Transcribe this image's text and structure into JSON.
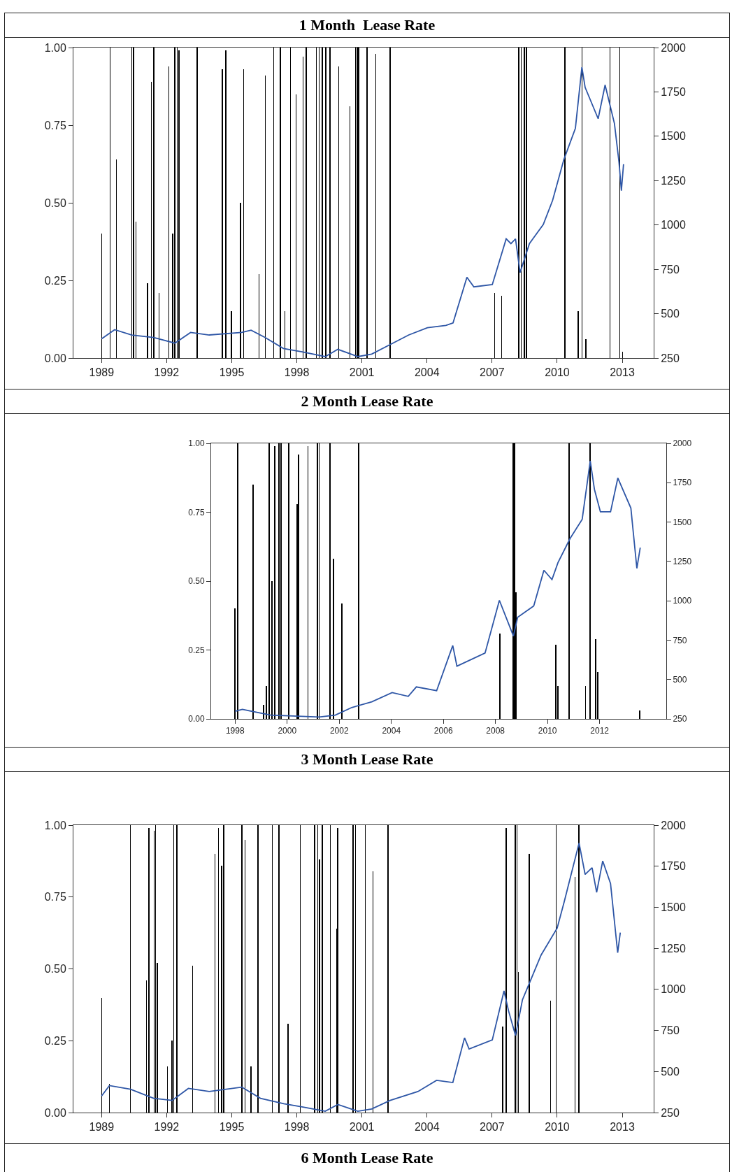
{
  "chart_data": [
    {
      "type": "bar",
      "title": "1 Month  Lease Rate",
      "xlim": [
        1987.7,
        2014.45
      ],
      "xticks": [
        1989,
        1992,
        1995,
        1998,
        2001,
        2004,
        2007,
        2010,
        2013
      ],
      "ylim": [
        0,
        1
      ],
      "yticks": [
        {
          "value": 0,
          "label": "0.00"
        },
        {
          "value": 0.25,
          "label": "0.25"
        },
        {
          "value": 0.5,
          "label": "0.50"
        },
        {
          "value": 0.75,
          "label": "0.75"
        },
        {
          "value": 1,
          "label": "1.00"
        }
      ],
      "y2lim": [
        250,
        2000
      ],
      "y2ticks": [
        250,
        500,
        750,
        1000,
        1250,
        1500,
        1750,
        2000
      ],
      "series": [
        {
          "type": "bar",
          "color": "#000000",
          "x": [
            1989.0,
            1989.39,
            1989.68,
            1990.39,
            1990.48,
            1990.58,
            1991.12,
            1991.29,
            1991.4,
            1991.65,
            1992.1,
            1992.27,
            1992.38,
            1992.49,
            1992.57,
            1993.41,
            1994.56,
            1994.73,
            1994.99,
            1995.4,
            1995.55,
            1996.25,
            1996.55,
            1996.94,
            1997.24,
            1997.45,
            1997.71,
            1997.96,
            1998.28,
            1998.43,
            1998.9,
            1999.03,
            1999.18,
            1999.33,
            1999.52,
            1999.93,
            2000.44,
            2000.7,
            2000.78,
            2000.85,
            2001.24,
            2001.64,
            2002.3,
            2007.12,
            2007.44,
            2008.23,
            2008.34,
            2008.49,
            2008.59,
            2010.35,
            2010.97,
            2011.14,
            2011.33,
            2012.44,
            2012.89,
            2013.02
          ],
          "values": [
            0.4,
            1,
            0.64,
            1,
            1,
            0.44,
            0.24,
            0.89,
            1,
            0.21,
            0.94,
            0.4,
            1,
            1,
            0.99,
            1,
            0.93,
            0.99,
            0.15,
            0.5,
            0.93,
            0.27,
            0.91,
            1,
            1,
            0.15,
            1,
            0.85,
            0.97,
            1,
            1,
            1,
            1,
            1,
            1,
            0.94,
            0.81,
            1,
            1,
            1,
            1,
            0.98,
            1,
            0.21,
            0.2,
            1,
            1,
            1,
            1,
            1,
            0.15,
            1,
            0.06,
            1,
            1,
            0.02
          ]
        },
        {
          "type": "line",
          "axis": "y2",
          "color": "#2e56a6",
          "x": [
            1989.0,
            1989.6,
            1990.39,
            1991.4,
            1992.38,
            1993.1,
            1993.96,
            1995.46,
            1995.89,
            1996.53,
            1997.38,
            1998.24,
            1999.31,
            1999.89,
            2000.81,
            2001.45,
            2002.3,
            2003.16,
            2004.02,
            2004.87,
            2005.2,
            2005.84,
            2006.16,
            2007.01,
            2007.65,
            2007.87,
            2008.08,
            2008.29,
            2008.72,
            2009.36,
            2009.79,
            2010.31,
            2010.84,
            2011.14,
            2011.29,
            2011.89,
            2012.21,
            2012.64,
            2012.85,
            2012.96,
            2013.06
          ],
          "values": [
            358,
            410,
            380,
            366,
            334,
            394,
            380,
            394,
            407,
            366,
            304,
            285,
            258,
            299,
            258,
            272,
            326,
            380,
            421,
            434,
            448,
            705,
            651,
            664,
            922,
            895,
            922,
            732,
            895,
            1003,
            1139,
            1369,
            1545,
            1889,
            1775,
            1599,
            1789,
            1572,
            1355,
            1193,
            1342
          ]
        }
      ]
    },
    {
      "type": "bar",
      "title": "2 Month Lease Rate",
      "xlim": [
        1997.08,
        2014.56
      ],
      "xticks": [
        1998,
        2000,
        2002,
        2004,
        2006,
        2008,
        2010,
        2012
      ],
      "ylim": [
        0,
        1
      ],
      "yticks": [
        {
          "value": 0,
          "label": "0.00"
        },
        {
          "value": 0.25,
          "label": "0.25"
        },
        {
          "value": 0.5,
          "label": "0.50"
        },
        {
          "value": 0.75,
          "label": "0.75"
        },
        {
          "value": 1,
          "label": "1.00"
        }
      ],
      "y2lim": [
        250,
        2000
      ],
      "y2ticks": [
        250,
        500,
        750,
        1000,
        1250,
        1500,
        1750,
        2000
      ],
      "series": [
        {
          "type": "bar",
          "color": "#000000",
          "x": [
            1998.0,
            1998.11,
            1998.68,
            1999.09,
            1999.21,
            1999.32,
            1999.42,
            1999.52,
            1999.68,
            1999.77,
            2000.07,
            2000.38,
            2000.43,
            2000.8,
            2001.17,
            2001.23,
            2001.65,
            2001.79,
            2002.09,
            2002.74,
            2008.18,
            2008.69,
            2008.74,
            2008.78,
            2010.32,
            2010.4,
            2010.82,
            2011.46,
            2011.64,
            2011.84,
            2011.92,
            2013.54
          ],
          "values": [
            0.4,
            1,
            0.85,
            0.05,
            0.12,
            1,
            0.5,
            0.99,
            1,
            1,
            1,
            0.78,
            0.96,
            0.99,
            1,
            1,
            1,
            0.58,
            0.42,
            1,
            0.31,
            1,
            1,
            0.46,
            0.27,
            0.12,
            1,
            0.12,
            1,
            0.29,
            0.17,
            0.03
          ]
        },
        {
          "type": "line",
          "axis": "y2",
          "color": "#2e56a6",
          "x": [
            1998.0,
            1998.28,
            1999.37,
            2001.23,
            2001.85,
            2002.48,
            2003.25,
            2004.03,
            2004.65,
            2004.96,
            2005.74,
            2006.36,
            2006.52,
            2007.6,
            2008.15,
            2008.69,
            2008.85,
            2009.47,
            2009.86,
            2010.17,
            2010.4,
            2010.87,
            2011.33,
            2011.64,
            2011.8,
            2012.03,
            2012.42,
            2012.7,
            2013.2,
            2013.43,
            2013.56
          ],
          "values": [
            298,
            310,
            274,
            262,
            274,
            322,
            358,
            417,
            393,
            453,
            429,
            716,
            585,
            668,
            1003,
            776,
            895,
            967,
            1194,
            1135,
            1242,
            1397,
            1517,
            1888,
            1708,
            1565,
            1565,
            1780,
            1589,
            1206,
            1338
          ]
        }
      ]
    },
    {
      "type": "bar",
      "title": "3 Month Lease Rate",
      "xlim": [
        1987.7,
        2014.45
      ],
      "xticks": [
        1989,
        1992,
        1995,
        1998,
        2001,
        2004,
        2007,
        2010,
        2013
      ],
      "ylim": [
        0,
        1
      ],
      "yticks": [
        {
          "value": 0,
          "label": "0.00"
        },
        {
          "value": 0.25,
          "label": "0.25"
        },
        {
          "value": 0.5,
          "label": "0.50"
        },
        {
          "value": 0.75,
          "label": "0.75"
        },
        {
          "value": 1,
          "label": "1.00"
        }
      ],
      "y2lim": [
        250,
        2000
      ],
      "y2ticks": [
        250,
        500,
        750,
        1000,
        1250,
        1500,
        1750,
        2000
      ],
      "series": [
        {
          "type": "bar",
          "color": "#000000",
          "x": [
            1989.0,
            1989.36,
            1990.33,
            1991.07,
            1991.18,
            1991.42,
            1991.49,
            1991.56,
            1992.03,
            1992.24,
            1992.32,
            1992.47,
            1993.19,
            1994.22,
            1994.39,
            1994.54,
            1994.63,
            1995.46,
            1995.61,
            1995.89,
            1996.21,
            1996.87,
            1997.17,
            1997.6,
            1998.16,
            1998.82,
            1998.97,
            1999.04,
            1999.18,
            1999.55,
            1999.83,
            1999.89,
            2000.59,
            2000.7,
            2001.15,
            2001.51,
            2002.2,
            2007.48,
            2007.65,
            2008.06,
            2008.15,
            2008.22,
            2008.72,
            2009.7,
            2009.96,
            2010.82,
            2011.01
          ],
          "values": [
            0.4,
            0.1,
            1,
            0.46,
            0.99,
            0.98,
            1,
            0.52,
            0.16,
            0.25,
            1,
            1,
            0.51,
            0.9,
            0.99,
            0.86,
            1,
            1,
            0.95,
            0.16,
            1,
            1,
            1,
            0.31,
            1,
            1,
            1,
            0.88,
            1,
            1,
            0.64,
            0.99,
            1,
            1,
            1,
            0.84,
            1,
            0.3,
            0.99,
            1,
            1,
            0.49,
            0.9,
            0.39,
            1,
            0.82,
            1
          ]
        },
        {
          "type": "line",
          "axis": "y2",
          "color": "#2e56a6",
          "x": [
            1989.0,
            1989.36,
            1990.33,
            1991.4,
            1992.25,
            1993.0,
            1993.96,
            1995.46,
            1996.32,
            1997.4,
            1998.24,
            1999.31,
            1999.89,
            2000.81,
            2001.45,
            2002.3,
            2003.58,
            2004.44,
            2005.19,
            2005.73,
            2005.94,
            2007.01,
            2007.55,
            2007.76,
            2008.08,
            2008.4,
            2009.26,
            2010.0,
            2010.33,
            2011.01,
            2011.29,
            2011.61,
            2011.82,
            2012.1,
            2012.46,
            2012.79,
            2012.91
          ],
          "values": [
            351,
            414,
            392,
            337,
            324,
            397,
            378,
            405,
            337,
            304,
            285,
            258,
            299,
            258,
            272,
            324,
            378,
            446,
            433,
            705,
            637,
            692,
            991,
            869,
            719,
            937,
            1209,
            1373,
            1536,
            1891,
            1700,
            1741,
            1591,
            1782,
            1645,
            1223,
            1346
          ]
        }
      ]
    },
    {
      "type": "other",
      "title": "6 Month Lease Rate"
    }
  ]
}
